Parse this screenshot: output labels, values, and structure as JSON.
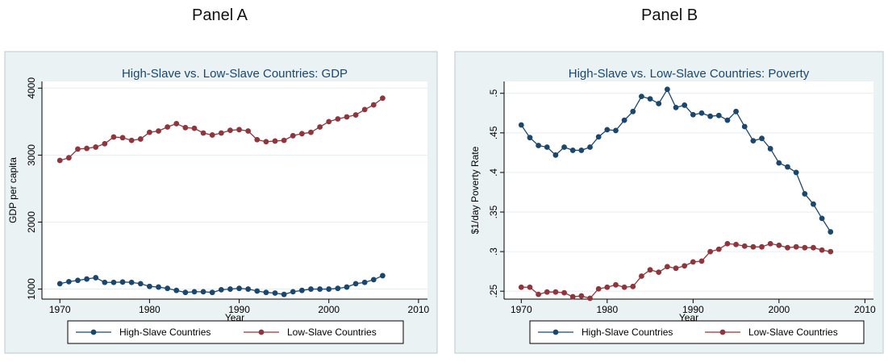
{
  "panels": [
    {
      "label": "Panel A"
    },
    {
      "label": "Panel B"
    }
  ],
  "chart_data": [
    {
      "type": "line",
      "title": "High-Slave vs. Low-Slave Countries: GDP",
      "xlabel": "Year",
      "ylabel": "GDP per capita",
      "xlim": [
        1968,
        2011
      ],
      "ylim": [
        850,
        4100
      ],
      "xticks": [
        "1970",
        "1980",
        "1990",
        "2000",
        "2010"
      ],
      "yticks": [
        "1000",
        "2000",
        "3000",
        "4000"
      ],
      "grid": "horizontal",
      "legend_position": "bottom",
      "x": [
        1970,
        1971,
        1972,
        1973,
        1974,
        1975,
        1976,
        1977,
        1978,
        1979,
        1980,
        1981,
        1982,
        1983,
        1984,
        1985,
        1986,
        1987,
        1988,
        1989,
        1990,
        1991,
        1992,
        1993,
        1994,
        1995,
        1996,
        1997,
        1998,
        1999,
        2000,
        2001,
        2002,
        2003,
        2004,
        2005,
        2006
      ],
      "series": [
        {
          "name": "High-Slave Countries",
          "color": "#1a476f",
          "values": [
            1080,
            1110,
            1130,
            1150,
            1170,
            1100,
            1100,
            1105,
            1100,
            1080,
            1040,
            1030,
            1010,
            980,
            950,
            960,
            960,
            950,
            990,
            1000,
            1010,
            1000,
            970,
            950,
            940,
            920,
            960,
            980,
            1000,
            1000,
            1000,
            1010,
            1030,
            1080,
            1100,
            1140,
            1200
          ]
        },
        {
          "name": "Low-Slave Countries",
          "color": "#90353b",
          "values": [
            2920,
            2960,
            3090,
            3100,
            3120,
            3170,
            3270,
            3260,
            3220,
            3240,
            3340,
            3360,
            3420,
            3470,
            3410,
            3400,
            3330,
            3300,
            3330,
            3370,
            3380,
            3360,
            3230,
            3200,
            3210,
            3220,
            3290,
            3320,
            3340,
            3420,
            3500,
            3540,
            3570,
            3600,
            3680,
            3750,
            3850
          ]
        }
      ]
    },
    {
      "type": "line",
      "title": "High-Slave vs. Low-Slave Countries: Poverty",
      "xlabel": "Year",
      "ylabel": "$1/day Poverty Rate",
      "xlim": [
        1968,
        2011
      ],
      "ylim": [
        0.24,
        0.515
      ],
      "xticks": [
        "1970",
        "1980",
        "1990",
        "2000",
        "2010"
      ],
      "yticks": [
        ".25",
        ".3",
        ".35",
        ".4",
        ".45",
        ".5"
      ],
      "grid": "horizontal",
      "legend_position": "bottom",
      "x": [
        1970,
        1971,
        1972,
        1973,
        1974,
        1975,
        1976,
        1977,
        1978,
        1979,
        1980,
        1981,
        1982,
        1983,
        1984,
        1985,
        1986,
        1987,
        1988,
        1989,
        1990,
        1991,
        1992,
        1993,
        1994,
        1995,
        1996,
        1997,
        1998,
        1999,
        2000,
        2001,
        2002,
        2003,
        2004,
        2005,
        2006
      ],
      "series": [
        {
          "name": "High-Slave Countries",
          "color": "#1a476f",
          "values": [
            0.46,
            0.444,
            0.434,
            0.432,
            0.422,
            0.432,
            0.428,
            0.428,
            0.432,
            0.445,
            0.454,
            0.453,
            0.466,
            0.477,
            0.496,
            0.493,
            0.487,
            0.505,
            0.482,
            0.485,
            0.473,
            0.475,
            0.471,
            0.472,
            0.466,
            0.477,
            0.458,
            0.44,
            0.443,
            0.43,
            0.412,
            0.407,
            0.4,
            0.373,
            0.36,
            0.342,
            0.325
          ]
        },
        {
          "name": "Low-Slave Countries",
          "color": "#90353b",
          "values": [
            0.255,
            0.255,
            0.246,
            0.249,
            0.249,
            0.248,
            0.243,
            0.244,
            0.241,
            0.253,
            0.255,
            0.258,
            0.255,
            0.256,
            0.269,
            0.277,
            0.274,
            0.281,
            0.279,
            0.282,
            0.287,
            0.288,
            0.3,
            0.303,
            0.31,
            0.309,
            0.307,
            0.306,
            0.306,
            0.31,
            0.308,
            0.305,
            0.306,
            0.305,
            0.305,
            0.302,
            0.3
          ]
        }
      ]
    }
  ]
}
